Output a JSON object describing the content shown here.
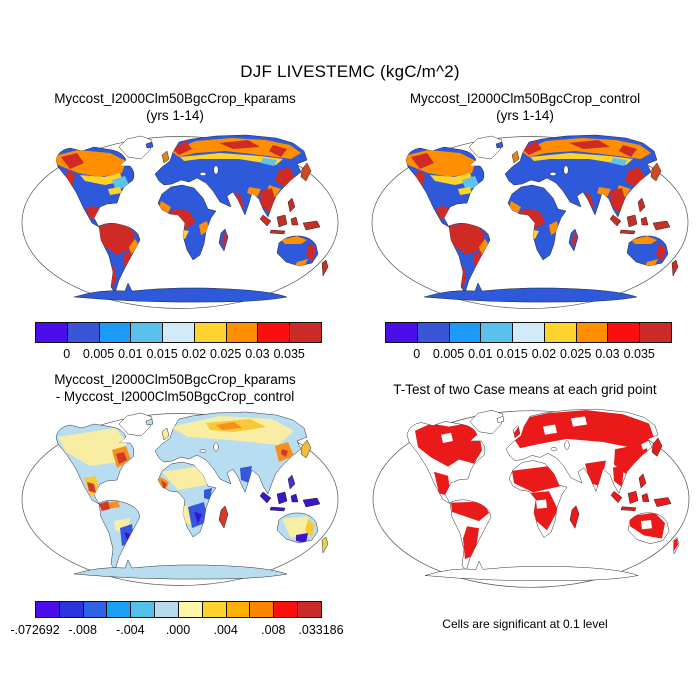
{
  "figure": {
    "title": "DJF LIVESTEMC (kgC/m^2)",
    "panels": [
      {
        "name": "kparams",
        "title_line1": "Myccost_I2000Clm50BgcCrop_kparams",
        "title_line2": "(yrs 1-14)"
      },
      {
        "name": "control",
        "title_line1": "Myccost_I2000Clm50BgcCrop_control",
        "title_line2": "(yrs 1-14)"
      },
      {
        "name": "difference",
        "title_line1": "Myccost_I2000Clm50BgcCrop_kparams",
        "title_line2": "- Myccost_I2000Clm50BgcCrop_control"
      },
      {
        "name": "ttest",
        "title": "T-Test of two Case means at each grid point",
        "caption": "Cells are significant at 0.1 level"
      }
    ],
    "colorbars": {
      "absolute": {
        "labels": [
          "0",
          "0.005",
          "0.01",
          "0.015",
          "0.02",
          "0.025",
          "0.03",
          "0.035"
        ],
        "colors": [
          "#4a0ee8",
          "#3a56d8",
          "#1c9bf8",
          "#59c1ec",
          "#d3eaf8",
          "#ffd32e",
          "#ff8e00",
          "#fa0f0f",
          "#c92b28"
        ],
        "label_positions_pct": [
          11.11,
          22.22,
          33.33,
          44.44,
          55.56,
          66.67,
          77.78,
          88.89
        ]
      },
      "difference": {
        "labels": [
          "-.072692",
          "-.008",
          "-.004",
          ".000",
          ".004",
          ".008",
          ".033186"
        ],
        "colors": [
          "#4a0ee8",
          "#2b35dd",
          "#2f62e4",
          "#19a0f4",
          "#52c0ea",
          "#b5dcee",
          "#fdf6a8",
          "#ffd22e",
          "#ffb000",
          "#ff8400",
          "#fa0f0f",
          "#c92b28"
        ],
        "label_positions_pct": [
          0,
          16.67,
          33.33,
          50,
          66.67,
          83.33,
          100
        ]
      }
    },
    "map_colors": {
      "ocean": "#ffffff",
      "land_low_value": "#2e59da",
      "land_high_value": "#c9302a",
      "boreal_band": "#ff8e00",
      "diff_negative_light": "#b9ddf0",
      "diff_positive_light": "#f8eda2",
      "significant_cells": "#ea1a1a"
    }
  }
}
